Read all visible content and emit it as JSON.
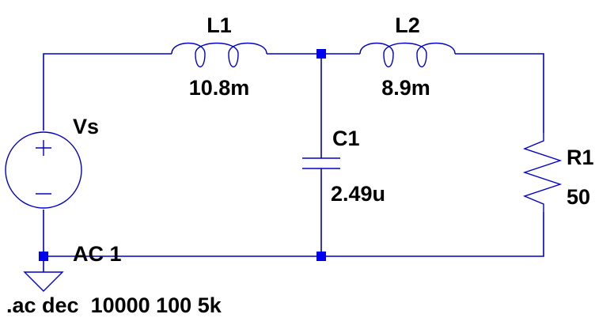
{
  "components": {
    "L1": {
      "name": "L1",
      "value": "10.8m"
    },
    "L2": {
      "name": "L2",
      "value": "8.9m"
    },
    "C1": {
      "name": "C1",
      "value": "2.49u"
    },
    "R1": {
      "name": "R1",
      "value": "50"
    },
    "Vs": {
      "name": "Vs",
      "value": "AC 1"
    }
  },
  "directive": ".ac dec  10000 100 5k",
  "colors": {
    "wire": "#0000cc",
    "junction": "#0000ee",
    "text": "#000000"
  }
}
